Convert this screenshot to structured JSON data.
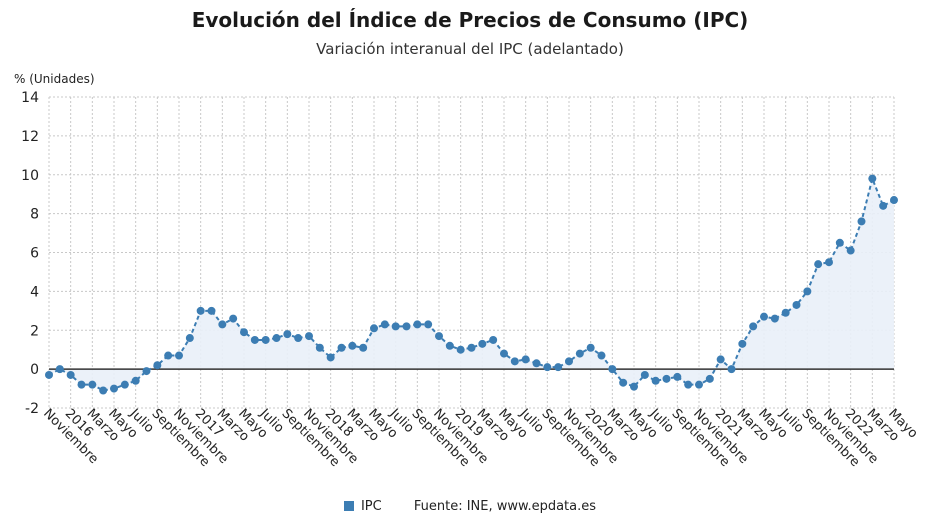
{
  "chart_data": {
    "type": "line",
    "title": "Evolución del Índice de Precios de Consumo (IPC)",
    "subtitle": "Variación interanual del IPC (adelantado)",
    "ylabel": "% (Unidades)",
    "ylim": [
      -2,
      14
    ],
    "yticks": [
      -2,
      0,
      2,
      4,
      6,
      8,
      10,
      12,
      14
    ],
    "grid": true,
    "legend_position": "bottom",
    "source": "Fuente: INE, www.epdata.es",
    "x_tick_labels": [
      "Noviembre",
      "2016",
      "Marzo",
      "Mayo",
      "Julio",
      "Septiembre",
      "Noviembre",
      "2017",
      "Marzo",
      "Mayo",
      "Julio",
      "Septiembre",
      "Noviembre",
      "2018",
      "Marzo",
      "Mayo",
      "Julio",
      "Septiembre",
      "Noviembre",
      "2019",
      "Marzo",
      "Mayo",
      "Julio",
      "Septiembre",
      "Noviembre",
      "2020",
      "Marzo",
      "Mayo",
      "Julio",
      "Septiembre",
      "Noviembre",
      "2021",
      "Marzo",
      "Mayo",
      "Julio",
      "Septiembre",
      "Noviembre",
      "2022",
      "Marzo",
      "Mayo"
    ],
    "x": [
      "Nov 2015",
      "Dic 2015",
      "Ene 2016",
      "Feb 2016",
      "Mar 2016",
      "Abr 2016",
      "May 2016",
      "Jun 2016",
      "Jul 2016",
      "Ago 2016",
      "Sep 2016",
      "Oct 2016",
      "Nov 2016",
      "Dic 2016",
      "Ene 2017",
      "Feb 2017",
      "Mar 2017",
      "Abr 2017",
      "May 2017",
      "Jun 2017",
      "Jul 2017",
      "Ago 2017",
      "Sep 2017",
      "Oct 2017",
      "Nov 2017",
      "Dic 2017",
      "Ene 2018",
      "Feb 2018",
      "Mar 2018",
      "Abr 2018",
      "May 2018",
      "Jun 2018",
      "Jul 2018",
      "Ago 2018",
      "Sep 2018",
      "Oct 2018",
      "Nov 2018",
      "Dic 2018",
      "Ene 2019",
      "Feb 2019",
      "Mar 2019",
      "Abr 2019",
      "May 2019",
      "Jun 2019",
      "Jul 2019",
      "Ago 2019",
      "Sep 2019",
      "Oct 2019",
      "Nov 2019",
      "Dic 2019",
      "Ene 2020",
      "Feb 2020",
      "Mar 2020",
      "Abr 2020",
      "May 2020",
      "Jun 2020",
      "Jul 2020",
      "Ago 2020",
      "Sep 2020",
      "Oct 2020",
      "Nov 2020",
      "Dic 2020",
      "Ene 2021",
      "Feb 2021",
      "Mar 2021",
      "Abr 2021",
      "May 2021",
      "Jun 2021",
      "Jul 2021",
      "Ago 2021",
      "Sep 2021",
      "Oct 2021",
      "Nov 2021",
      "Dic 2021",
      "Ene 2022",
      "Feb 2022",
      "Mar 2022",
      "Abr 2022",
      "May 2022"
    ],
    "series": [
      {
        "name": "IPC",
        "color": "#3c7db3",
        "values": [
          -0.3,
          0.0,
          -0.3,
          -0.8,
          -0.8,
          -1.1,
          -1.0,
          -0.8,
          -0.6,
          -0.1,
          0.2,
          0.7,
          0.7,
          1.6,
          3.0,
          3.0,
          2.3,
          2.6,
          1.9,
          1.5,
          1.5,
          1.6,
          1.8,
          1.6,
          1.7,
          1.1,
          0.6,
          1.1,
          1.2,
          1.1,
          2.1,
          2.3,
          2.2,
          2.2,
          2.3,
          2.3,
          1.7,
          1.2,
          1.0,
          1.1,
          1.3,
          1.5,
          0.8,
          0.4,
          0.5,
          0.3,
          0.1,
          0.1,
          0.4,
          0.8,
          1.1,
          0.7,
          0.0,
          -0.7,
          -0.9,
          -0.3,
          -0.6,
          -0.5,
          -0.4,
          -0.8,
          -0.8,
          -0.5,
          0.5,
          0.0,
          1.3,
          2.2,
          2.7,
          2.6,
          2.9,
          3.3,
          4.0,
          5.4,
          5.5,
          6.5,
          6.1,
          7.6,
          9.8,
          8.4,
          8.7
        ]
      }
    ]
  }
}
